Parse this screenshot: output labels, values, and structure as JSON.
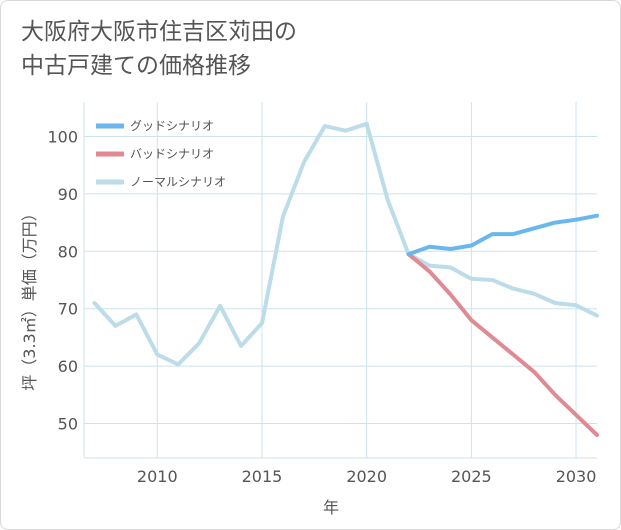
{
  "chart_data": {
    "type": "line",
    "title_lines": [
      "大阪府大阪市住吉区苅田の",
      "中古戸建ての価格推移"
    ],
    "xlabel": "年",
    "ylabel": "坪（3.3㎡）単価（万円）",
    "xlim": [
      2006.5,
      2031
    ],
    "ylim": [
      44,
      106
    ],
    "xticks": [
      2010,
      2015,
      2020,
      2025,
      2030
    ],
    "yticks": [
      50,
      60,
      70,
      80,
      90,
      100
    ],
    "legend_position": "top-left",
    "series": [
      {
        "name": "グッドシナリオ",
        "color": "#6ab7ee",
        "x": [
          2022,
          2023,
          2024,
          2025,
          2026,
          2027,
          2028,
          2029,
          2030,
          2031
        ],
        "values": [
          79.5,
          80.8,
          80.4,
          81,
          83,
          83,
          84,
          85,
          85.5,
          86.2
        ]
      },
      {
        "name": "バッドシナリオ",
        "color": "#e08a93",
        "x": [
          2022,
          2023,
          2024,
          2025,
          2026,
          2027,
          2028,
          2029,
          2030,
          2031
        ],
        "values": [
          79.5,
          76.5,
          72.5,
          68,
          65,
          62,
          59,
          55,
          51.5,
          48
        ]
      },
      {
        "name": "ノーマルシナリオ",
        "color": "#bcdcea",
        "x": [
          2007,
          2008,
          2009,
          2010,
          2011,
          2012,
          2013,
          2014,
          2015,
          2016,
          2017,
          2018,
          2019,
          2020,
          2021,
          2022,
          2023,
          2024,
          2025,
          2026,
          2027,
          2028,
          2029,
          2030,
          2031
        ],
        "values": [
          71,
          67,
          69,
          62,
          60.3,
          64,
          70.5,
          63.5,
          67.5,
          86,
          95.5,
          101.8,
          101,
          102.2,
          89,
          79.5,
          77.5,
          77.2,
          75.2,
          75,
          73.5,
          72.6,
          71,
          70.6,
          68.8
        ]
      }
    ]
  }
}
